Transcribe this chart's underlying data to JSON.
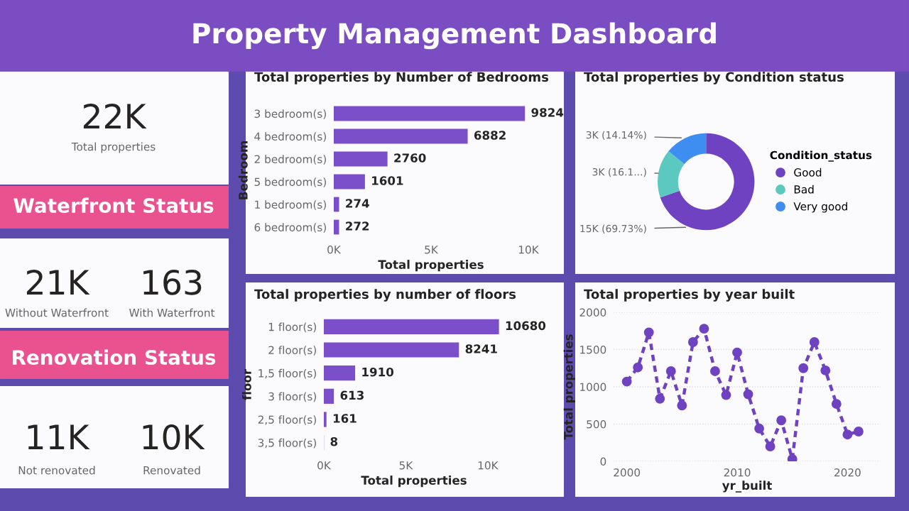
{
  "chart_data": [
    {
      "type": "other",
      "title": "Property Management Dashboard",
      "annotations": [
        "22K",
        "Total properties",
        "Waterfront Status",
        "21K",
        "Without Waterfront",
        "163",
        "With Waterfront",
        "Renovation Status",
        "11K",
        "Not renovated",
        "10K",
        "Renovated"
      ]
    },
    {
      "type": "bar",
      "orientation": "horizontal",
      "title": "Total properties by Number of Bedrooms",
      "xlabel": "Total properties",
      "ylabel": "Bedroom",
      "categories": [
        "3 bedroom(s)",
        "4 bedroom(s)",
        "2 bedroom(s)",
        "5 bedroom(s)",
        "1 bedroom(s)",
        "6 bedroom(s)"
      ],
      "values": [
        9824,
        6882,
        2760,
        1601,
        274,
        272
      ],
      "color": "#7b4fc9",
      "xlim": [
        0,
        10000
      ],
      "xticks": [
        {
          "value": 0,
          "label": "0K"
        },
        {
          "value": 5000,
          "label": "5K"
        },
        {
          "value": 10000,
          "label": "10K"
        }
      ],
      "data_labels": true
    },
    {
      "type": "donut",
      "title": "Total properties by Condition status",
      "legend_title": "Condition_status",
      "categories": [
        "Good",
        "Bad",
        "Very good"
      ],
      "values": [
        69.73,
        16.13,
        14.14
      ],
      "value_labels": [
        "15K (69.73%)",
        "3K (16.1...)",
        "3K (14.14%)"
      ],
      "colors": [
        "#6f42c1",
        "#5cc9c0",
        "#3d8ef0"
      ],
      "legend": "right"
    },
    {
      "type": "bar",
      "orientation": "horizontal",
      "title": "Total properties by number of floors",
      "xlabel": "Total properties",
      "ylabel": "floor",
      "categories": [
        "1 floor(s)",
        "2 floor(s)",
        "1,5 floor(s)",
        "3 floor(s)",
        "2,5 floor(s)",
        "3,5 floor(s)"
      ],
      "values": [
        10680,
        8241,
        1910,
        613,
        161,
        8
      ],
      "color": "#7b4fc9",
      "xlim": [
        0,
        11000
      ],
      "xticks": [
        {
          "value": 0,
          "label": "0K"
        },
        {
          "value": 5000,
          "label": "5K"
        },
        {
          "value": 10000,
          "label": "10K"
        }
      ],
      "data_labels": true
    },
    {
      "type": "line",
      "title": "Total properties by year built",
      "xlabel": "yr_built",
      "ylabel": "Total properties",
      "x": [
        2000,
        2001,
        2002,
        2003,
        2004,
        2005,
        2006,
        2007,
        2008,
        2009,
        2010,
        2011,
        2012,
        2013,
        2014,
        2015,
        2016,
        2017,
        2018,
        2019,
        2020,
        2021
      ],
      "series": [
        {
          "color": "#6f42c1",
          "values": [
            1070,
            1260,
            1730,
            840,
            1210,
            750,
            1600,
            1780,
            1210,
            890,
            1460,
            900,
            440,
            200,
            550,
            30,
            1250,
            1600,
            1220,
            770,
            360,
            400
          ]
        }
      ],
      "xlim": [
        1998.8,
        2023
      ],
      "xticks": [
        2000,
        2010,
        2020
      ],
      "ylim": [
        0,
        2000
      ],
      "yticks": [
        0,
        500,
        1000,
        1500,
        2000
      ],
      "grid": "y",
      "marker": "circle",
      "line_style": "dashed"
    }
  ]
}
